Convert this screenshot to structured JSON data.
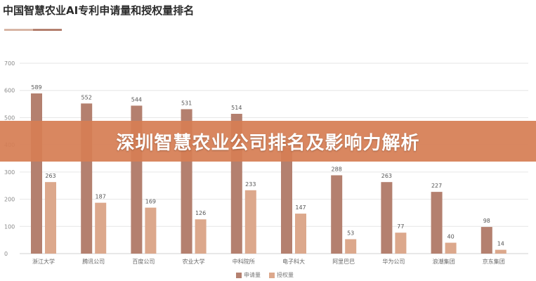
{
  "header": {
    "title": "中国智慧农业AI专利申请量和授权量排名"
  },
  "banner": {
    "text": "深圳智慧农业公司排名及影响力解析"
  },
  "colors": {
    "accent_dark": "#b4806f",
    "accent_light": "#dca88c",
    "banner_bg": "#d67e54"
  },
  "chart_data": {
    "type": "bar",
    "title": "中国智慧农业AI专利申请量和授权量排名",
    "categories": [
      "浙江大学",
      "腾讯公司",
      "百度公司",
      "农业大学",
      "中科院所",
      "电子科大",
      "阿里巴巴",
      "华为公司",
      "浪潮集团",
      "京东集团"
    ],
    "series": [
      {
        "name": "申请量",
        "values": [
          589,
          552,
          544,
          531,
          514,
          390,
          288,
          263,
          227,
          98
        ]
      },
      {
        "name": "授权量",
        "values": [
          263,
          187,
          169,
          126,
          233,
          147,
          53,
          77,
          40,
          14
        ]
      }
    ],
    "ylim": [
      0,
      700
    ],
    "yticks": [
      0,
      100,
      200,
      300,
      400,
      500,
      600,
      700
    ],
    "grid": true,
    "legend": "bottom-center",
    "data_labels": true
  }
}
